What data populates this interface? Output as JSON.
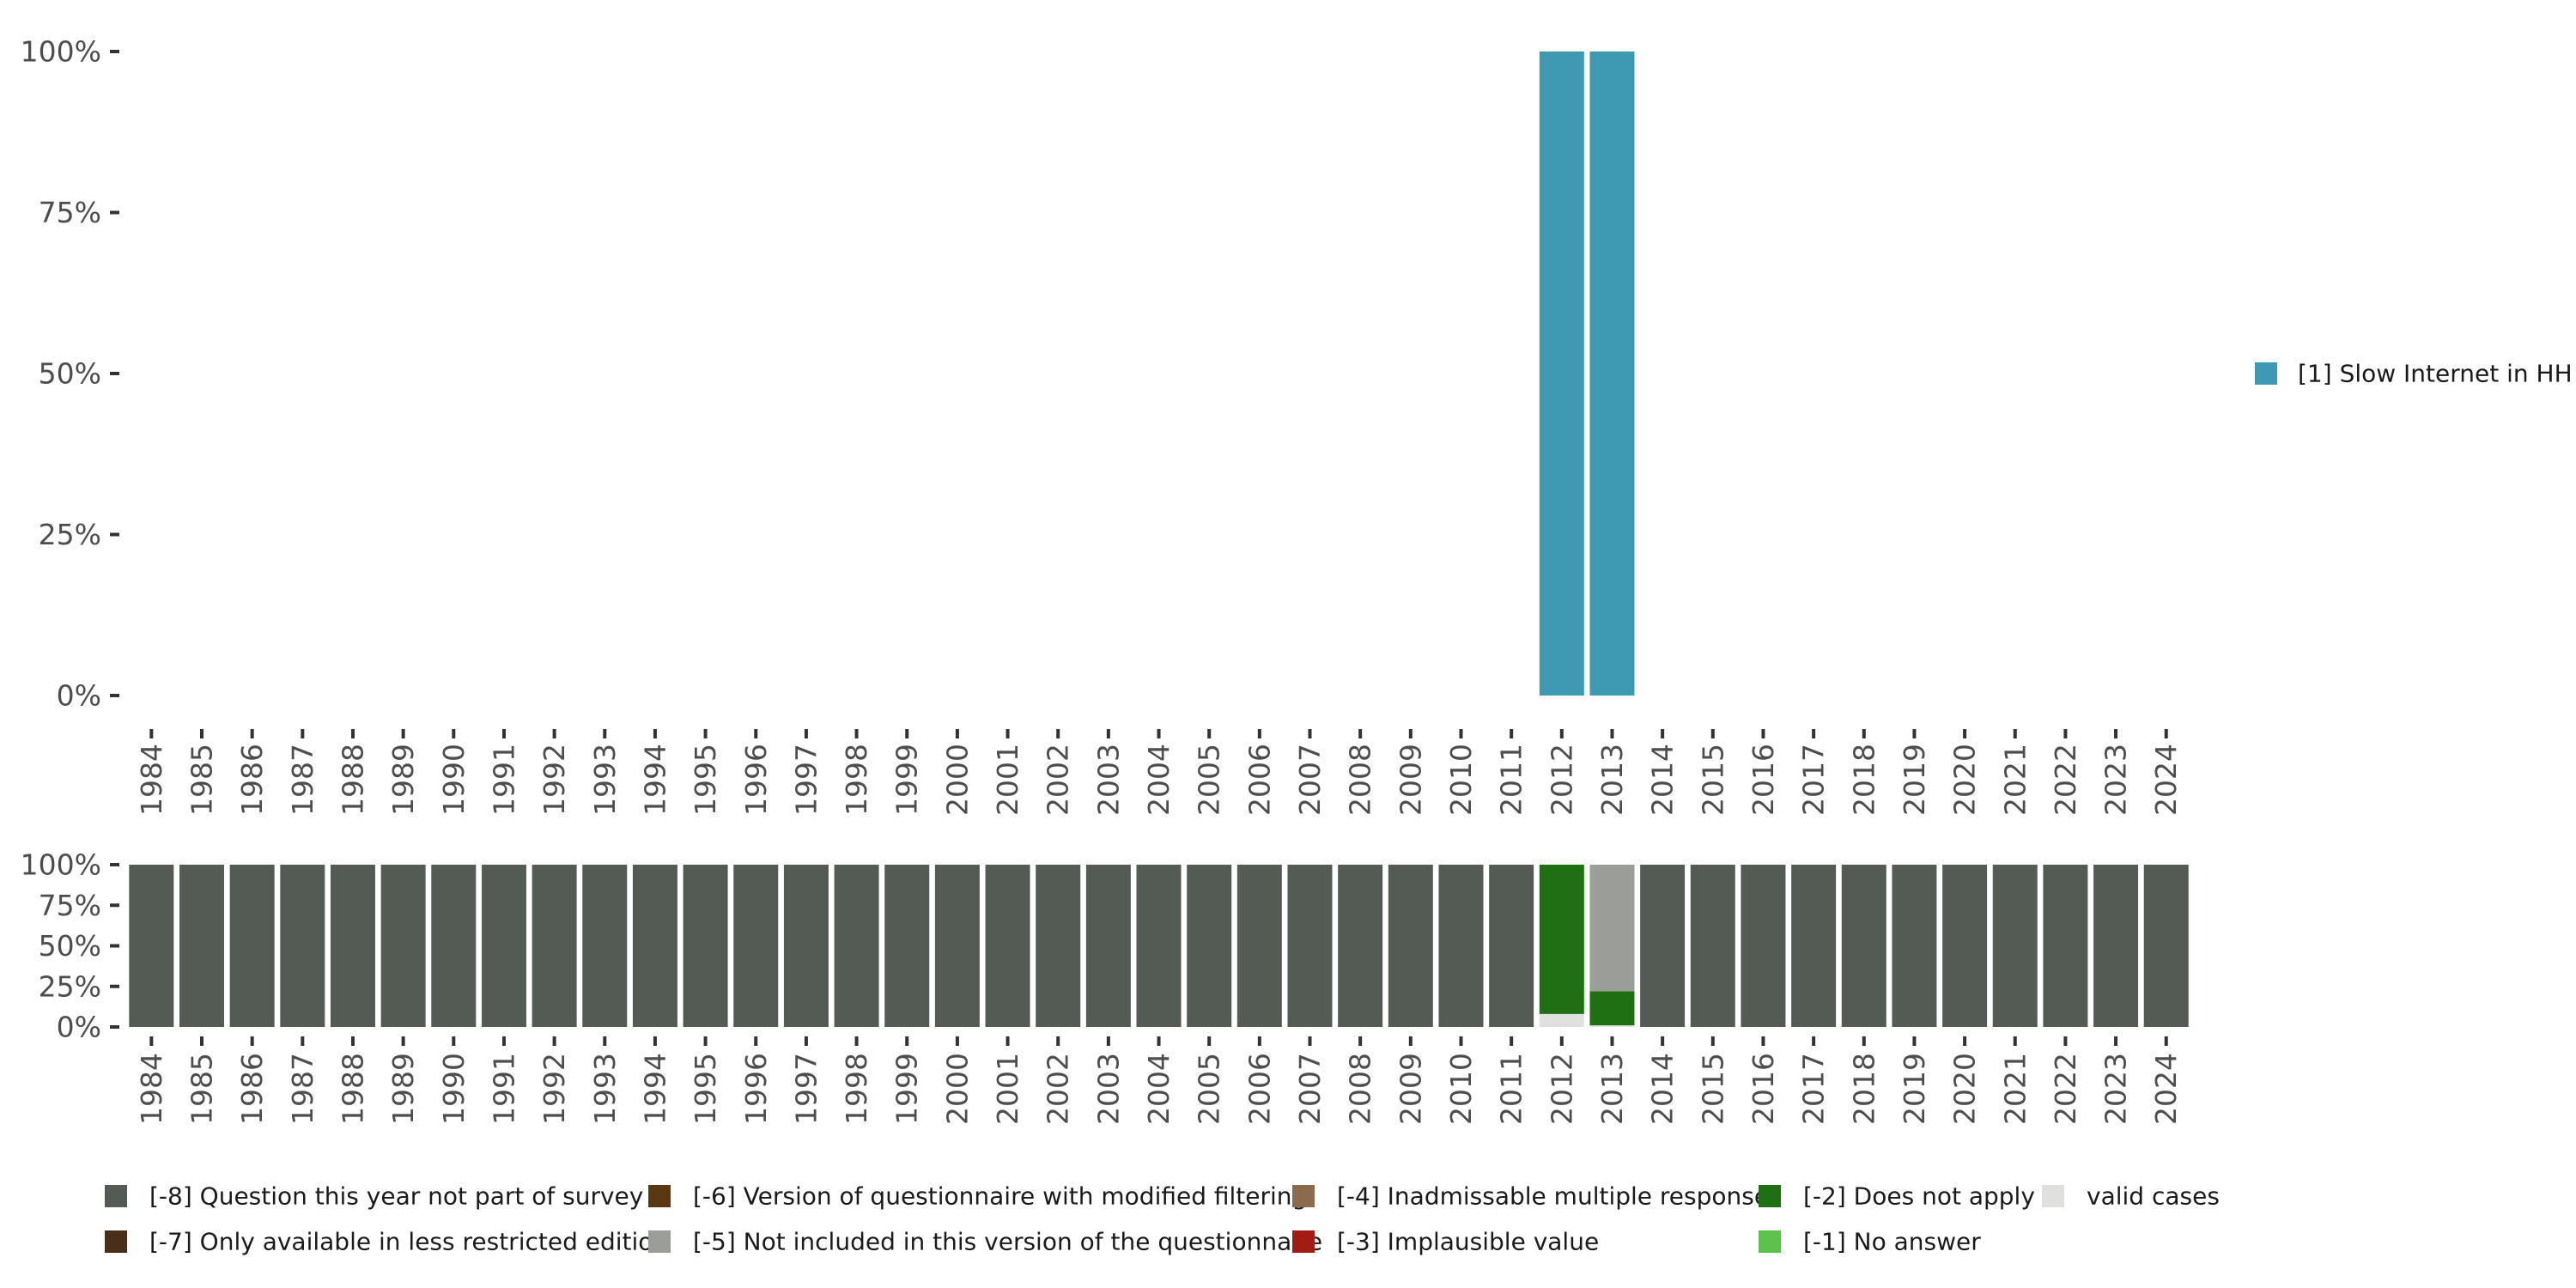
{
  "chart_data": [
    {
      "type": "bar",
      "title": "",
      "xlabel": "",
      "ylabel": "",
      "ylim": [
        0,
        100
      ],
      "y_ticks": [
        "0%",
        "25%",
        "50%",
        "75%",
        "100%"
      ],
      "categories": [
        "1984",
        "1985",
        "1986",
        "1987",
        "1988",
        "1989",
        "1990",
        "1991",
        "1992",
        "1993",
        "1994",
        "1995",
        "1996",
        "1997",
        "1998",
        "1999",
        "2000",
        "2001",
        "2002",
        "2003",
        "2004",
        "2005",
        "2006",
        "2007",
        "2008",
        "2009",
        "2010",
        "2011",
        "2012",
        "2013",
        "2014",
        "2015",
        "2016",
        "2017",
        "2018",
        "2019",
        "2020",
        "2021",
        "2022",
        "2023",
        "2024"
      ],
      "series": [
        {
          "name": "[1] Slow Internet in HH",
          "color": "#3e9ab2",
          "values": {
            "2012": 100,
            "2013": 100
          }
        }
      ],
      "legend_position": "right"
    },
    {
      "type": "bar",
      "stacked": true,
      "title": "",
      "xlabel": "",
      "ylabel": "",
      "ylim": [
        0,
        100
      ],
      "y_ticks": [
        "0%",
        "25%",
        "50%",
        "75%",
        "100%"
      ],
      "categories": [
        "1984",
        "1985",
        "1986",
        "1987",
        "1988",
        "1989",
        "1990",
        "1991",
        "1992",
        "1993",
        "1994",
        "1995",
        "1996",
        "1997",
        "1998",
        "1999",
        "2000",
        "2001",
        "2002",
        "2003",
        "2004",
        "2005",
        "2006",
        "2007",
        "2008",
        "2009",
        "2010",
        "2011",
        "2012",
        "2013",
        "2014",
        "2015",
        "2016",
        "2017",
        "2018",
        "2019",
        "2020",
        "2021",
        "2022",
        "2023",
        "2024"
      ],
      "series": [
        {
          "name": "valid cases",
          "color": "#e0e0de",
          "values": {
            "2012": 8,
            "2013": 1
          }
        },
        {
          "name": "[-1] No answer",
          "color": "#5bc24a",
          "values": {}
        },
        {
          "name": "[-2] Does not apply",
          "color": "#1f7013",
          "values": {
            "2012": 92,
            "2013": 21
          }
        },
        {
          "name": "[-3] Implausible value",
          "color": "#a31c14",
          "values": {}
        },
        {
          "name": "[-4] Inadmissable multiple response",
          "color": "#8c6a4d",
          "values": {}
        },
        {
          "name": "[-5] Not included in this version of the questionnaire",
          "color": "#9a9d98",
          "values": {
            "2013": 78
          }
        },
        {
          "name": "[-6] Version of questionnaire with modified filtering",
          "color": "#5a3813",
          "values": {}
        },
        {
          "name": "[-7] Only available in less restricted edition",
          "color": "#4a2e1a",
          "values": {}
        },
        {
          "name": "[-8] Question this year not part of survey",
          "color": "#545b55",
          "values": {
            "1984": 100,
            "1985": 100,
            "1986": 100,
            "1987": 100,
            "1988": 100,
            "1989": 100,
            "1990": 100,
            "1991": 100,
            "1992": 100,
            "1993": 100,
            "1994": 100,
            "1995": 100,
            "1996": 100,
            "1997": 100,
            "1998": 100,
            "1999": 100,
            "2000": 100,
            "2001": 100,
            "2002": 100,
            "2003": 100,
            "2004": 100,
            "2005": 100,
            "2006": 100,
            "2007": 100,
            "2008": 100,
            "2009": 100,
            "2010": 100,
            "2011": 100,
            "2014": 100,
            "2015": 100,
            "2016": 100,
            "2017": 100,
            "2018": 100,
            "2019": 100,
            "2020": 100,
            "2021": 100,
            "2022": 100,
            "2023": 100,
            "2024": 100
          }
        }
      ],
      "legend_position": "bottom",
      "legend_order": [
        "[-8] Question this year not part of survey",
        "[-7] Only available in less restricted edition",
        "[-6] Version of questionnaire with modified filtering",
        "[-5] Not included in this version of the questionnaire",
        "[-4] Inadmissable multiple response",
        "[-3] Implausible value",
        "[-2] Does not apply",
        "[-1] No answer",
        "valid cases"
      ]
    }
  ]
}
